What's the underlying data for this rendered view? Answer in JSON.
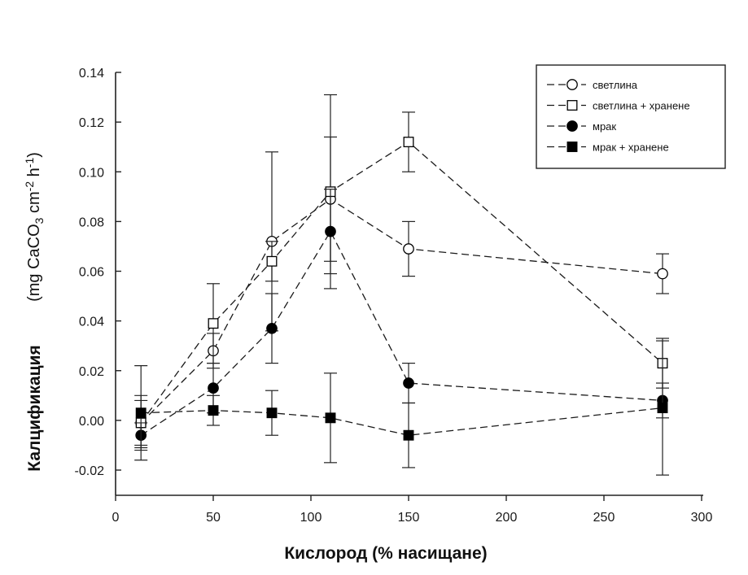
{
  "chart_data": {
    "type": "line",
    "title": "",
    "xlabel": "Кислород (% насищане)",
    "ylabel": "Калцификация",
    "ylabel_unit": [
      "(mg CaCO",
      "3",
      " cm",
      "-2",
      " h",
      "-1",
      ")"
    ],
    "xlim": [
      0,
      300
    ],
    "ylim": [
      -0.03,
      0.14
    ],
    "xticks": [
      0,
      50,
      100,
      150,
      200,
      250,
      300
    ],
    "yticks": [
      -0.02,
      0.0,
      0.02,
      0.04,
      0.06,
      0.08,
      0.1,
      0.12,
      0.14
    ],
    "ytick_labels": [
      "-0.02",
      "0.00",
      "0.02",
      "0.04",
      "0.06",
      "0.08",
      "0.10",
      "0.12",
      "0.14"
    ],
    "grid": false,
    "legend_position": "top-right",
    "line_style": "dashed",
    "series": [
      {
        "name": "светлина",
        "marker": "circle-open",
        "x": [
          13,
          50,
          80,
          110,
          150,
          280
        ],
        "y": [
          -0.001,
          0.028,
          0.072,
          0.089,
          0.069,
          0.059
        ],
        "err": [
          0.009,
          0.007,
          0.036,
          0.025,
          0.011,
          0.008
        ]
      },
      {
        "name": "светлина + хранене",
        "marker": "square-open",
        "x": [
          13,
          50,
          80,
          110,
          150,
          280
        ],
        "y": [
          -0.001,
          0.039,
          0.064,
          0.092,
          0.112,
          0.023
        ],
        "err": [
          0.011,
          0.016,
          0.008,
          0.039,
          0.012,
          0.01
        ]
      },
      {
        "name": "мрак",
        "marker": "circle-filled",
        "x": [
          13,
          50,
          80,
          110,
          150,
          280
        ],
        "y": [
          -0.006,
          0.013,
          0.037,
          0.076,
          0.015,
          0.008
        ],
        "err": [
          0.005,
          0.01,
          0.014,
          0.017,
          0.008,
          0.007
        ]
      },
      {
        "name": "мрак + хранене",
        "marker": "square-filled",
        "x": [
          13,
          50,
          80,
          110,
          150,
          280
        ],
        "y": [
          0.003,
          0.004,
          0.003,
          0.001,
          -0.006,
          0.005
        ],
        "err": [
          0.019,
          0.006,
          0.009,
          0.018,
          0.013,
          0.027
        ]
      }
    ]
  }
}
